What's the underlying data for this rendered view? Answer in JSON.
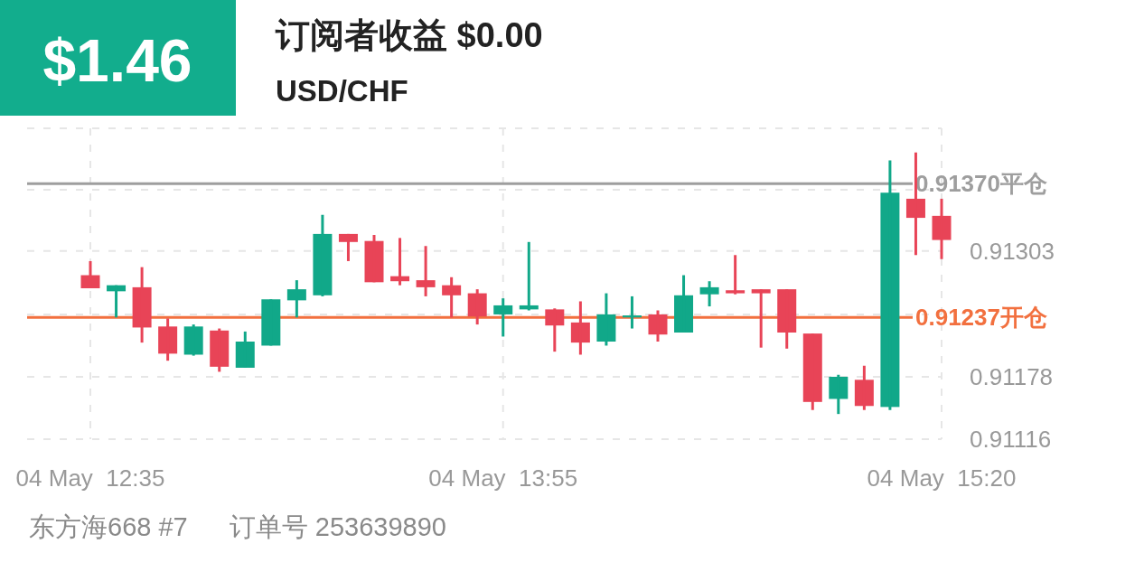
{
  "chart_data": {
    "type": "candlestick",
    "title": "订阅者收益 $0.00",
    "subtitle": "USD/CHF",
    "annotations": [
      "$1.46",
      "东方海668 #7",
      "订单号 253639890"
    ],
    "categories": [
      "04 May  12:35",
      null,
      null,
      null,
      null,
      null,
      null,
      null,
      null,
      null,
      null,
      null,
      null,
      null,
      null,
      null,
      "04 May  13:55",
      null,
      null,
      null,
      null,
      null,
      null,
      null,
      null,
      null,
      null,
      null,
      null,
      null,
      null,
      null,
      null,
      "04 May  15:20"
    ],
    "ohlc": [
      [
        0.91279,
        0.91293,
        0.91266,
        0.91266
      ],
      [
        0.91263,
        0.91269,
        0.91237,
        0.91269
      ],
      [
        0.91267,
        0.91287,
        0.91212,
        0.91227
      ],
      [
        0.91228,
        0.91236,
        0.91194,
        0.91201
      ],
      [
        0.912,
        0.9123,
        0.91199,
        0.91228
      ],
      [
        0.91224,
        0.91226,
        0.91183,
        0.91188
      ],
      [
        0.91187,
        0.91223,
        0.91187,
        0.91213
      ],
      [
        0.91209,
        0.91255,
        0.91209,
        0.91255
      ],
      [
        0.91254,
        0.91274,
        0.91237,
        0.91265
      ],
      [
        0.91259,
        0.91339,
        0.91258,
        0.9132
      ],
      [
        0.9132,
        0.9132,
        0.91293,
        0.91312
      ],
      [
        0.91313,
        0.91319,
        0.91272,
        0.91272
      ],
      [
        0.91278,
        0.91316,
        0.91269,
        0.91273
      ],
      [
        0.91274,
        0.91308,
        0.91258,
        0.91267
      ],
      [
        0.91269,
        0.91277,
        0.91237,
        0.91259
      ],
      [
        0.91261,
        0.91265,
        0.9123,
        0.91238
      ],
      [
        0.9124,
        0.91256,
        0.91218,
        0.91249
      ],
      [
        0.91245,
        0.91312,
        0.91244,
        0.91249
      ],
      [
        0.91245,
        0.91246,
        0.91203,
        0.91229
      ],
      [
        0.91232,
        0.91253,
        0.912,
        0.91212
      ],
      [
        0.91213,
        0.91261,
        0.91209,
        0.9124
      ],
      [
        0.91237,
        0.91258,
        0.91226,
        0.91239
      ],
      [
        0.9124,
        0.91244,
        0.91213,
        0.9122
      ],
      [
        0.91222,
        0.91279,
        0.91222,
        0.91259
      ],
      [
        0.9126,
        0.91273,
        0.91248,
        0.91267
      ],
      [
        0.91264,
        0.91299,
        0.9126,
        0.91261
      ],
      [
        0.91265,
        0.91265,
        0.91207,
        0.91261
      ],
      [
        0.91265,
        0.91265,
        0.91206,
        0.91222
      ],
      [
        0.91221,
        0.91221,
        0.91145,
        0.91153
      ],
      [
        0.91156,
        0.9118,
        0.91141,
        0.91178
      ],
      [
        0.91175,
        0.91189,
        0.91145,
        0.91149
      ],
      [
        0.91148,
        0.91393,
        0.91145,
        0.91361
      ],
      [
        0.91355,
        0.91401,
        0.91299,
        0.91336
      ],
      [
        0.91338,
        0.91355,
        0.91295,
        0.91314
      ]
    ],
    "ylim": [
      0.91116,
      0.91425
    ],
    "yticks": [
      0.91116,
      0.91178,
      {
        "value": 0.9124,
        "label": null
      },
      0.91303,
      {
        "value": 0.91364,
        "label": null
      },
      {
        "value": 0.91425,
        "label": null
      }
    ],
    "ref_lines": [
      {
        "axis": "y",
        "value": 0.9137,
        "label": "0.91370平仓",
        "color": "#9e9e9e"
      },
      {
        "axis": "y",
        "value": 0.91237,
        "label": "0.91237开仓",
        "color": "#f2703f"
      }
    ],
    "grid": true
  }
}
